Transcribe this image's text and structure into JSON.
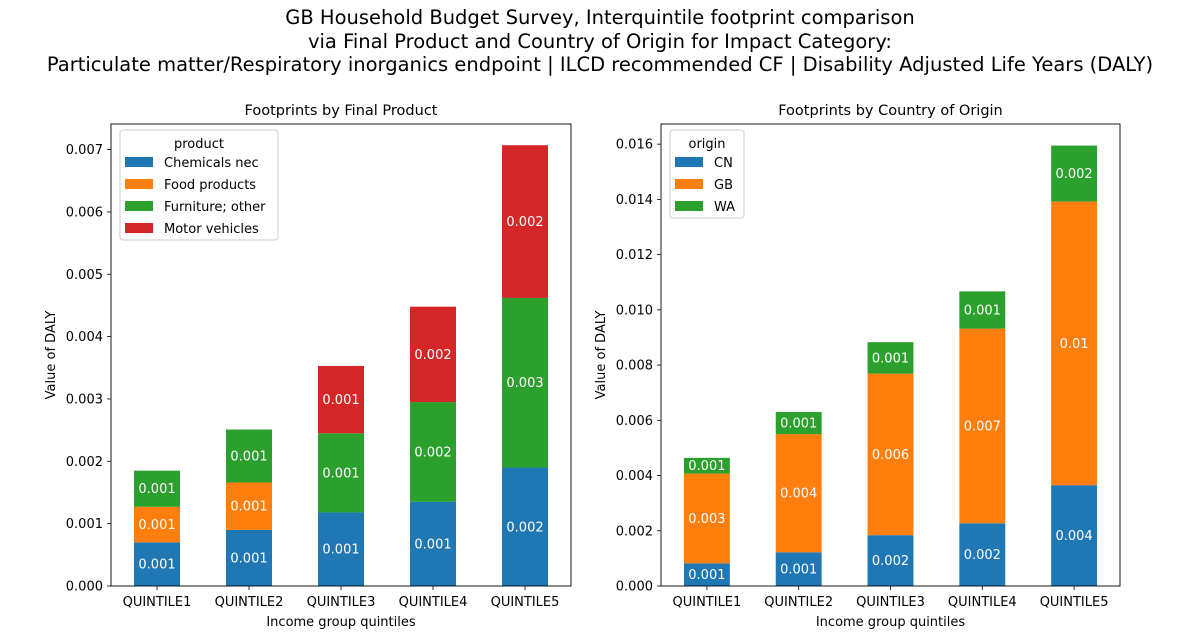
{
  "figure": {
    "title_lines": [
      "GB Household Budget Survey, Interquintile footprint comparison",
      "via Final Product and Country of Origin for Impact Category:",
      "Particulate matter/Respiratory inorganics endpoint | ILCD recommended CF | Disability Adjusted Life Years (DALY)"
    ]
  },
  "chart_data": [
    {
      "type": "bar",
      "stacked": true,
      "title": "Footprints by Final Product",
      "xlabel": "Income group quintiles",
      "ylabel": "Value of DALY",
      "categories": [
        "QUINTILE1",
        "QUINTILE2",
        "QUINTILE3",
        "QUINTILE4",
        "QUINTILE5"
      ],
      "ylim": [
        0,
        0.00741
      ],
      "yticks": [
        0.0,
        0.001,
        0.002,
        0.003,
        0.004,
        0.005,
        0.006,
        0.007
      ],
      "ytick_labels": [
        "0.000",
        "0.001",
        "0.002",
        "0.003",
        "0.004",
        "0.005",
        "0.006",
        "0.007"
      ],
      "legend_title": "product",
      "legend_position": "top-left",
      "grid": false,
      "series": [
        {
          "name": "Chemicals nec",
          "color": "#1f77b4",
          "values": [
            0.0007,
            0.0009,
            0.00118,
            0.00135,
            0.0019
          ],
          "labels": [
            "0.001",
            "0.001",
            "0.001",
            "0.001",
            "0.002"
          ]
        },
        {
          "name": "Food products",
          "color": "#ff7f0e",
          "values": [
            0.00057,
            0.00076,
            0.0,
            0.0,
            0.0
          ],
          "labels": [
            "0.001",
            "0.001",
            "",
            "",
            ""
          ]
        },
        {
          "name": "Furniture; other",
          "color": "#2ca02c",
          "values": [
            0.00058,
            0.00085,
            0.00127,
            0.0016,
            0.00272
          ],
          "labels": [
            "0.001",
            "0.001",
            "0.001",
            "0.002",
            "0.003"
          ]
        },
        {
          "name": "Motor vehicles",
          "color": "#d62728",
          "values": [
            0.0,
            0.0,
            0.00108,
            0.00153,
            0.00245
          ],
          "labels": [
            "",
            "",
            "0.001",
            "0.002",
            "0.002"
          ]
        }
      ]
    },
    {
      "type": "bar",
      "stacked": true,
      "title": "Footprints by Country of Origin",
      "xlabel": "Income group quintiles",
      "ylabel": "Value of DALY",
      "categories": [
        "QUINTILE1",
        "QUINTILE2",
        "QUINTILE3",
        "QUINTILE4",
        "QUINTILE5"
      ],
      "ylim": [
        0,
        0.01673
      ],
      "yticks": [
        0.0,
        0.002,
        0.004,
        0.006,
        0.008,
        0.01,
        0.012,
        0.014,
        0.016
      ],
      "ytick_labels": [
        "0.000",
        "0.002",
        "0.004",
        "0.006",
        "0.008",
        "0.010",
        "0.012",
        "0.014",
        "0.016"
      ],
      "legend_title": "origin",
      "legend_position": "top-left",
      "grid": false,
      "series": [
        {
          "name": "CN",
          "color": "#1f77b4",
          "values": [
            0.00082,
            0.00122,
            0.00184,
            0.00227,
            0.00365
          ],
          "labels": [
            "0.001",
            "0.001",
            "0.002",
            "0.002",
            "0.004"
          ]
        },
        {
          "name": "GB",
          "color": "#ff7f0e",
          "values": [
            0.00325,
            0.00428,
            0.00585,
            0.00705,
            0.01027
          ],
          "labels": [
            "0.003",
            "0.004",
            "0.006",
            "0.007",
            "0.01"
          ]
        },
        {
          "name": "WA",
          "color": "#2ca02c",
          "values": [
            0.00057,
            0.0008,
            0.00114,
            0.00135,
            0.00203
          ],
          "labels": [
            "0.001",
            "0.001",
            "0.001",
            "0.001",
            "0.002"
          ]
        }
      ]
    }
  ]
}
